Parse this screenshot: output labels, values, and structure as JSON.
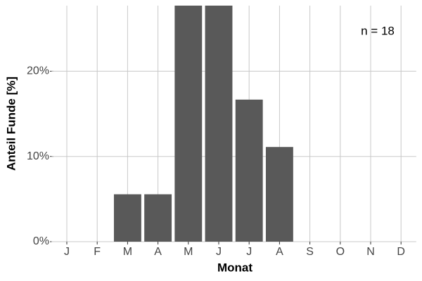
{
  "chart_data": {
    "type": "bar",
    "x_label": "Monat",
    "y_label": "Anteil Funde [%]",
    "annotation": "n = 18",
    "categories": [
      "J",
      "F",
      "M",
      "A",
      "M",
      "J",
      "J",
      "A",
      "S",
      "O",
      "N",
      "D"
    ],
    "values": [
      0,
      0,
      5.56,
      5.56,
      27.78,
      27.78,
      16.67,
      11.11,
      0,
      0,
      0,
      0
    ],
    "color": "#595959",
    "ylim": [
      0,
      27.7
    ],
    "yticks": [
      {
        "value": 0,
        "label": "0%"
      },
      {
        "value": 10,
        "label": "10%"
      },
      {
        "value": 20,
        "label": "20%"
      }
    ],
    "grid": true
  }
}
